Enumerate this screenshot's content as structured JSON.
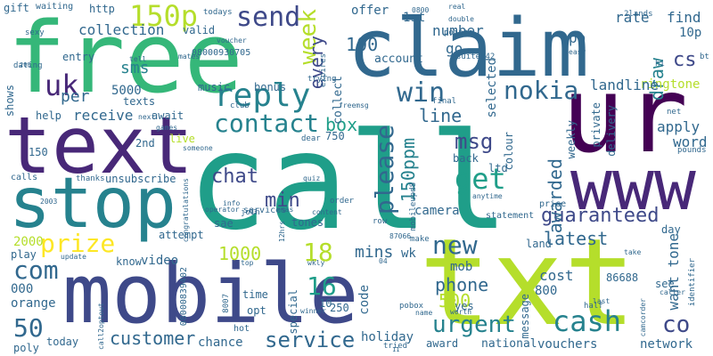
{
  "palette": {
    "c0": "#440154",
    "c1": "#482878",
    "c2": "#3e4989",
    "c3": "#31688e",
    "c4": "#26828e",
    "c5": "#1f9e89",
    "c6": "#35b779",
    "c7": "#6ece58",
    "c8": "#b5de2b",
    "c9": "#fde725"
  },
  "words": {
    "call": "call",
    "free": "free",
    "txt": "txt",
    "ur": "ur",
    "text": "text",
    "claim": "claim",
    "mobile": "mobile",
    "stop": "stop",
    "www": "www",
    "reply": "reply",
    "uk": "uk",
    "send": "send",
    "150p": "150p",
    "contact": "contact",
    "box": "box",
    "week": "week",
    "get": "get",
    "win": "win",
    "please": "please",
    "prize": "prize",
    "new": "new",
    "cash": "cash",
    "urgent": "urgent",
    "service": "service",
    "customer": "customer",
    "com": "com",
    "guaranteed": "guaranteed",
    "nokia": "nokia",
    "msg": "msg",
    "chat": "chat",
    "min": "min",
    "18": "18",
    "16": "16",
    "1000": "1000",
    "500": "500",
    "50": "50",
    "co": "co",
    "latest": "latest",
    "150ppm": "150ppm",
    "mins": "mins",
    "phone": "phone",
    "awarded": "awarded",
    "line": "line",
    "cs": "cs",
    "draw": "draw",
    "100": "100",
    "every": "every",
    "sms": "sms",
    "per": "per",
    "collection": "collection",
    "send_small": "5000",
    "receive": "receive",
    "apply": "apply",
    "want": "want",
    "tone": "tone",
    "ringtone": "ringtone",
    "word": "word",
    "landline": "landline",
    "find": "find",
    "rate": "rate",
    "number": "number",
    "offer": "offer",
    "1st": "1st",
    "po": "po",
    "10p": "10p",
    "go": "go",
    "account": "account",
    "selected": "selected",
    "collect": "collect",
    "video": "video",
    "orange": "orange",
    "2000": "2000",
    "000": "000",
    "know": "know",
    "play": "play",
    "attempt": "attempt",
    "holiday": "holiday",
    "chance": "chance",
    "today": "today",
    "vouchers": "vouchers",
    "network": "network",
    "cost": "cost",
    "800": "800",
    "mob": "mob",
    "wk": "wk",
    "code": "code",
    "camera": "camera",
    "yes": "yes",
    "national": "national",
    "award": "award",
    "message": "message",
    "86688": "86688",
    "see": "see",
    "sae": "sae",
    "tones": "tones",
    "live": "live",
    "2nd": "2nd",
    "await": "await",
    "texts": "texts",
    "help": "help",
    "shows": "shows",
    "music": "music",
    "bonus": "bonus",
    "valid": "valid",
    "entry": "entry",
    "http": "http",
    "weekly": "weekly",
    "colour": "colour",
    "back": "back",
    "ltd": "ltd",
    "private": "private",
    "delivery": "delivery",
    "time": "time",
    "opt": "opt",
    "special": "special",
    "hot": "hot",
    "10": "10",
    "250": "250",
    "poly": "poly",
    "land": "land",
    "day": "day",
    "unsubscribe": "unsubscribe",
    "services": "services",
    "operator": "operator",
    "statement": "statement",
    "price": "price",
    "calls": "calls",
    "gift": "gift",
    "waiting": "waiting",
    "dating": "dating",
    "sexy": "sexy",
    "todays": "todays",
    "voucher": "voucher",
    "08000930705": "08000930705",
    "08000839402": "08000839402",
    "points": "points",
    "0800": "0800",
    "real": "real",
    "double": "double",
    "suite342": "suite342",
    "2lands": "2lands",
    "bt": "bt",
    "hi": "hi",
    "easy": "easy",
    "trying": "trying",
    "expires": "expires",
    "tell": "tell",
    "mates": "mates",
    "games": "games",
    "club": "club",
    "freemsg": "freemsg",
    "final": "final",
    "net": "net",
    "pounds": "pounds",
    "dear": "dear",
    "someone": "someone",
    "next": "next",
    "thanks": "thanks",
    "congratulations": "congratulations",
    "xmas": "xmas",
    "join": "join",
    "info": "info",
    "quiz": "quiz",
    "order": "order",
    "content": "content",
    "anytime": "anytime",
    "mobileupd8": "mobileupd8",
    "row": "row",
    "make": "make",
    "87066": "87066",
    "12hrs": "12hrs",
    "update": "update",
    "top": "top",
    "wkly": "wkly",
    "pobox": "pobox",
    "name": "name",
    "worth": "worth",
    "tried": "tried",
    "winner": "winner",
    "8007": "8007",
    "call2optout": "call2optout",
    "half": "half",
    "last": "last",
    "camcorder": "camcorder",
    "caller": "caller",
    "identifier": "identifier",
    "take": "take",
    "200": "200",
    "04": "04",
    "11": "11",
    "03": "03",
    "2003": "2003",
    "150": "150",
    "750": "750"
  }
}
